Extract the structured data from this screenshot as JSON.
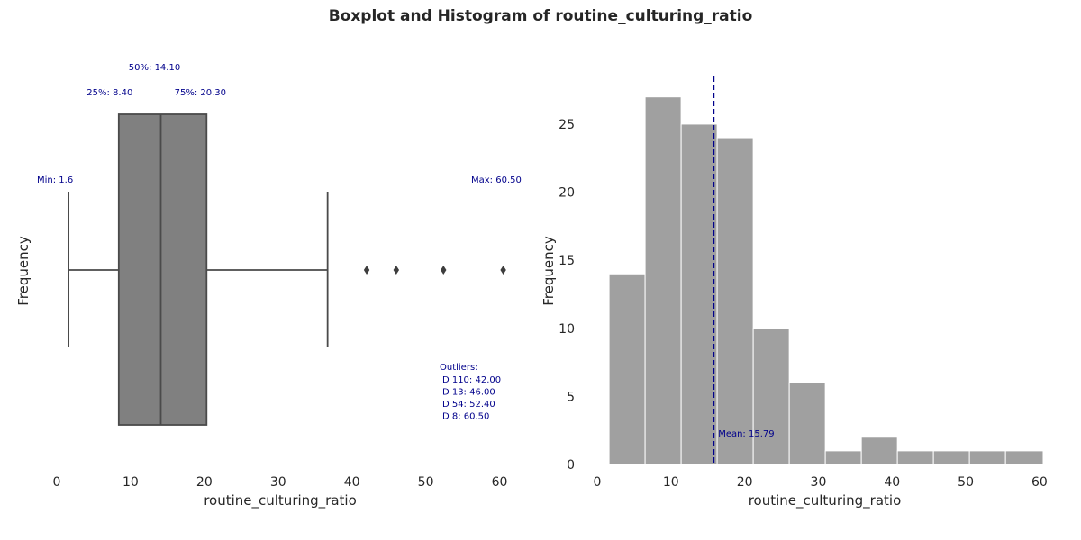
{
  "title": "Boxplot and Histogram of routine_culturing_ratio",
  "colors": {
    "box_fill": "#808080",
    "box_line": "#4a4a4a",
    "hist_fill": "#a0a0a0",
    "mean_line": "#00008b",
    "annotation": "#00008b",
    "text": "#262626"
  },
  "chart_data": [
    {
      "type": "boxplot",
      "xlabel": "routine_culturing_ratio",
      "ylabel": "Frequency",
      "xlim": [
        0,
        62.5
      ],
      "xticks": [
        0,
        10,
        20,
        30,
        40,
        50,
        60
      ],
      "min": 1.6,
      "q1": 8.4,
      "median": 14.1,
      "q3": 20.3,
      "whisker_low": 1.6,
      "whisker_high": 36.7,
      "max": 60.5,
      "outliers": [
        42.0,
        46.0,
        52.4,
        60.5
      ],
      "annotations": {
        "median": "50%: 14.10",
        "q1": "25%: 8.40",
        "q3": "75%: 20.30",
        "min": "Min: 1.6",
        "max": "Max: 60.50",
        "outliers_header": "Outliers:",
        "outliers_list": [
          "ID 110: 42.00",
          "ID 13: 46.00",
          "ID 54: 52.40",
          "ID 8: 60.50"
        ]
      }
    },
    {
      "type": "histogram",
      "xlabel": "routine_culturing_ratio",
      "ylabel": "Frequency",
      "xlim": [
        0,
        60.5
      ],
      "ylim": [
        0,
        28.5
      ],
      "xticks": [
        0,
        10,
        20,
        30,
        40,
        50,
        60
      ],
      "yticks": [
        0,
        5,
        10,
        15,
        20,
        25
      ],
      "bin_edges": [
        1.6,
        6.49,
        11.38,
        16.27,
        21.16,
        26.05,
        30.94,
        35.83,
        40.72,
        45.61,
        50.5,
        55.39,
        60.5
      ],
      "counts": [
        14,
        27,
        25,
        24,
        10,
        6,
        1,
        2,
        1,
        1,
        1,
        1
      ],
      "mean": 15.79,
      "mean_label": "Mean: 15.79"
    }
  ]
}
